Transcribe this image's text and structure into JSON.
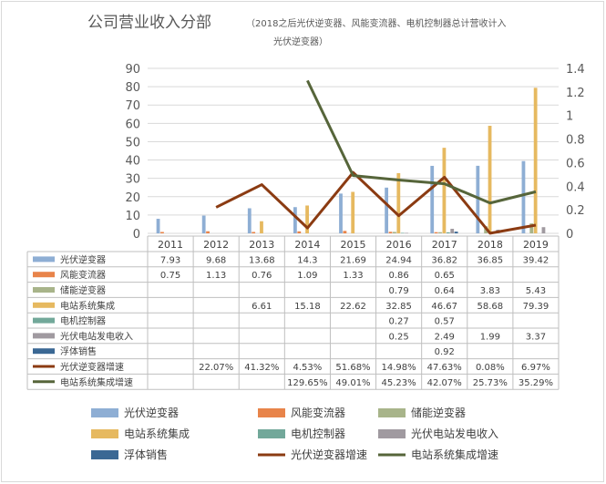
{
  "title": "公司营业收入分部",
  "subtitle_line1": "（2018之后光伏逆变器、风能变流器、电机控制器总计营收计入",
  "subtitle_line2": "光伏逆变器）",
  "chart_data": {
    "type": "bar",
    "categories": [
      "2011",
      "2012",
      "2013",
      "2014",
      "2015",
      "2016",
      "2017",
      "2018",
      "2019"
    ],
    "y_left": {
      "min": 0,
      "max": 90,
      "ticks": [
        0,
        10,
        20,
        30,
        40,
        50,
        60,
        70,
        80,
        90
      ]
    },
    "y_right": {
      "min": 0,
      "max": 1.4,
      "ticks": [
        "0",
        "0.2",
        "0.4",
        "0.6",
        "0.8",
        "1",
        "1.2",
        "1.4"
      ]
    },
    "series": [
      {
        "name": "光伏逆变器",
        "kind": "bar",
        "color": "#8eaed4",
        "values": [
          7.93,
          9.68,
          13.68,
          14.3,
          21.69,
          24.94,
          36.82,
          36.85,
          39.42
        ],
        "labels": [
          "7.93",
          "9.68",
          "13.68",
          "14.3",
          "21.69",
          "24.94",
          "36.82",
          "36.85",
          "39.42"
        ]
      },
      {
        "name": "风能变流器",
        "kind": "bar",
        "color": "#e8844a",
        "values": [
          0.75,
          1.13,
          0.76,
          1.09,
          1.33,
          0.86,
          0.65,
          null,
          null
        ],
        "labels": [
          "0.75",
          "1.13",
          "0.76",
          "1.09",
          "1.33",
          "0.86",
          "0.65",
          "",
          ""
        ]
      },
      {
        "name": "储能逆变器",
        "kind": "bar",
        "color": "#a8b48a",
        "values": [
          null,
          null,
          null,
          null,
          null,
          0.79,
          0.64,
          3.83,
          5.43
        ],
        "labels": [
          "",
          "",
          "",
          "",
          "",
          "0.79",
          "0.64",
          "3.83",
          "5.43"
        ]
      },
      {
        "name": "电站系统集成",
        "kind": "bar",
        "color": "#e6b960",
        "values": [
          null,
          null,
          6.61,
          15.18,
          22.62,
          32.85,
          46.67,
          58.68,
          79.39
        ],
        "labels": [
          "",
          "",
          "6.61",
          "15.18",
          "22.62",
          "32.85",
          "46.67",
          "58.68",
          "79.39"
        ]
      },
      {
        "name": "电机控制器",
        "kind": "bar",
        "color": "#72a89a",
        "values": [
          null,
          null,
          null,
          null,
          null,
          0.27,
          0.57,
          null,
          null
        ],
        "labels": [
          "",
          "",
          "",
          "",
          "",
          "0.27",
          "0.57",
          "",
          ""
        ]
      },
      {
        "name": "光伏电站发电收入",
        "kind": "bar",
        "color": "#a09aa0",
        "values": [
          null,
          null,
          null,
          null,
          null,
          0.25,
          2.49,
          1.99,
          3.37
        ],
        "labels": [
          "",
          "",
          "",
          "",
          "",
          "0.25",
          "2.49",
          "1.99",
          "3.37"
        ]
      },
      {
        "name": "浮体销售",
        "kind": "bar",
        "color": "#3b6894",
        "values": [
          null,
          null,
          null,
          null,
          null,
          null,
          0.92,
          null,
          null
        ],
        "labels": [
          "",
          "",
          "",
          "",
          "",
          "",
          "0.92",
          "",
          ""
        ]
      },
      {
        "name": "光伏逆变器增速",
        "kind": "line",
        "axis": "right",
        "color": "#8b3b12",
        "values": [
          null,
          0.2207,
          0.4132,
          0.0453,
          0.5168,
          0.1498,
          0.4763,
          0.0008,
          0.0697
        ],
        "labels": [
          "",
          "22.07%",
          "41.32%",
          "4.53%",
          "51.68%",
          "14.98%",
          "47.63%",
          "0.08%",
          "6.97%"
        ]
      },
      {
        "name": "电站系统集成增速",
        "kind": "line",
        "axis": "right",
        "color": "#56653a",
        "values": [
          null,
          null,
          null,
          1.2965,
          0.4901,
          0.4523,
          0.4207,
          0.2573,
          0.3529
        ],
        "labels": [
          "",
          "",
          "",
          "129.65%",
          "49.01%",
          "45.23%",
          "42.07%",
          "25.73%",
          "35.29%"
        ]
      }
    ],
    "legend_position": "bottom",
    "grid": true
  }
}
